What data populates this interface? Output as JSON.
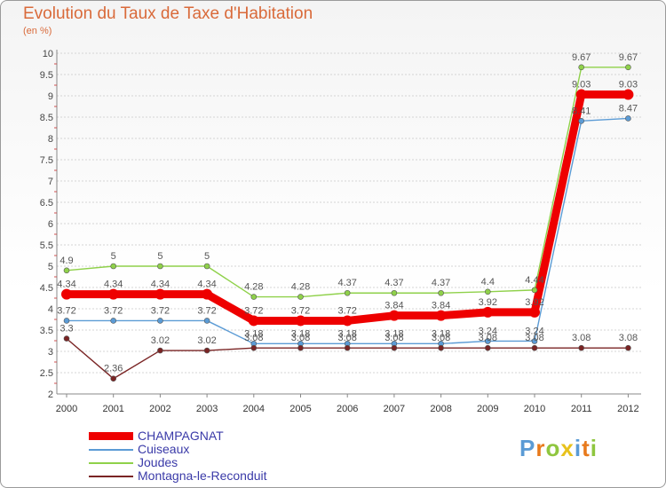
{
  "title": "Evolution du Taux de Taxe d'Habitation",
  "unit": "(en %)",
  "logo": "Proxiti",
  "chart_data": {
    "type": "line",
    "x": [
      "2000",
      "2001",
      "2002",
      "2003",
      "2004",
      "2005",
      "2006",
      "2007",
      "2008",
      "2009",
      "2010",
      "2011",
      "2012"
    ],
    "ylim": [
      2,
      10
    ],
    "yticks": [
      "2",
      "2.5",
      "3",
      "3.5",
      "4",
      "4.5",
      "5",
      "5.5",
      "6",
      "6.5",
      "7",
      "7.5",
      "8",
      "8.5",
      "9",
      "9.5",
      "10"
    ],
    "series": [
      {
        "name": "Joudes",
        "color": "#8fd14a",
        "values": [
          4.9,
          5,
          5,
          5,
          4.28,
          4.28,
          4.37,
          4.37,
          4.37,
          4.4,
          4.44,
          9.67,
          9.67
        ],
        "labels": [
          "4.9",
          "5",
          "5",
          "5",
          "4.28",
          "4.28",
          "4.37",
          "4.37",
          "4.37",
          "4.4",
          "4.44",
          "9.67",
          "9.67"
        ]
      },
      {
        "name": "Cuiseaux",
        "color": "#5b9bd5",
        "values": [
          3.72,
          3.72,
          3.72,
          3.72,
          3.18,
          3.18,
          3.18,
          3.18,
          3.18,
          3.24,
          3.24,
          8.41,
          8.47
        ],
        "labels": [
          "3.72",
          "3.72",
          "3.72",
          "3.72",
          "3.18",
          "3.18",
          "3.18",
          "3.18",
          "3.18",
          "3.24",
          "3.24",
          "8.41",
          "8.47"
        ]
      },
      {
        "name": "Montagna-le-Reconduit",
        "color": "#7a2424",
        "values": [
          3.3,
          2.36,
          3.02,
          3.02,
          3.08,
          3.08,
          3.08,
          3.08,
          3.08,
          3.08,
          3.08,
          3.08,
          3.08
        ],
        "labels": [
          "3.3",
          "2.36",
          "3.02",
          "3.02",
          "3.08",
          "3.08",
          "3.08",
          "3.08",
          "3.08",
          "3.08",
          "3.08",
          "3.08",
          "3.08"
        ]
      },
      {
        "name": "CHAMPAGNAT",
        "color": "#ee0000",
        "values": [
          4.34,
          4.34,
          4.34,
          4.34,
          3.72,
          3.72,
          3.72,
          3.84,
          3.84,
          3.92,
          3.92,
          9.03,
          9.03
        ],
        "labels": [
          "4.34",
          "4.34",
          "4.34",
          "4.34",
          "3.72",
          "3.72",
          "3.72",
          "3.84",
          "3.84",
          "3.92",
          "3.92",
          "9.03",
          "9.03"
        ]
      }
    ],
    "legend": [
      "CHAMPAGNAT",
      "Cuiseaux",
      "Joudes",
      "Montagna-le-Reconduit"
    ]
  }
}
